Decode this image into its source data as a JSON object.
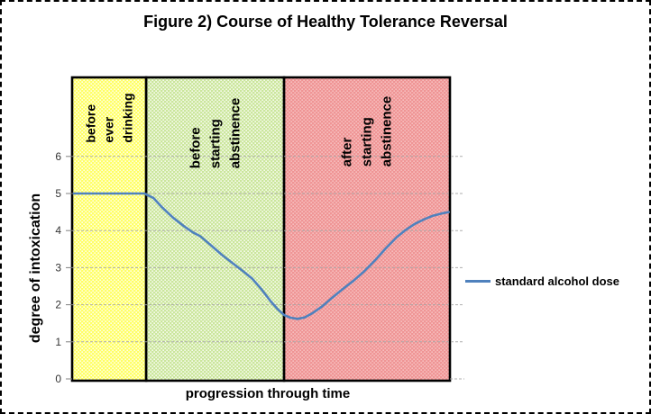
{
  "chart_data": {
    "type": "line",
    "title": "Figure 2) Course of Healthy Tolerance Reversal",
    "xlabel": "progression through time",
    "ylabel": "degree of intoxication",
    "ylim": [
      0,
      6
    ],
    "yticks": [
      0,
      1,
      2,
      3,
      4,
      5,
      6
    ],
    "x_axis": "unitless time (no numeric ticks), divided into three labeled phases",
    "grid": "horizontal dashed gridlines at each y tick",
    "grid_color": "#a6a6a6",
    "legend_position": "right",
    "regions": [
      {
        "label": "before\never\ndrinking",
        "t0": 0.0,
        "t1": 0.196,
        "fill": "#ffff66",
        "dot": "#ffffff"
      },
      {
        "label": "before\nstarting\nabstinence",
        "t0": 0.196,
        "t1": 0.561,
        "fill": "#cbe69c",
        "dot": "#ffffff"
      },
      {
        "label": "after\nstarting\nabstinence",
        "t0": 0.561,
        "t1": 1.0,
        "fill": "#ef9595",
        "dot": "#f9c6c6"
      }
    ],
    "series": [
      {
        "name": "standard alcohol dose",
        "color": "#4f81bd",
        "points_format": "[fraction of time axis 0-1, degree of intoxication]",
        "points": [
          [
            0.005,
            5
          ],
          [
            0.05,
            5
          ],
          [
            0.1,
            5
          ],
          [
            0.15,
            5
          ],
          [
            0.191,
            5
          ],
          [
            0.215,
            4.88
          ],
          [
            0.239,
            4.62
          ],
          [
            0.267,
            4.35
          ],
          [
            0.296,
            4.12
          ],
          [
            0.32,
            3.95
          ],
          [
            0.339,
            3.85
          ],
          [
            0.368,
            3.6
          ],
          [
            0.396,
            3.35
          ],
          [
            0.425,
            3.12
          ],
          [
            0.453,
            2.9
          ],
          [
            0.477,
            2.7
          ],
          [
            0.501,
            2.42
          ],
          [
            0.525,
            2.1
          ],
          [
            0.544,
            1.88
          ],
          [
            0.561,
            1.72
          ],
          [
            0.578,
            1.65
          ],
          [
            0.597,
            1.62
          ],
          [
            0.616,
            1.66
          ],
          [
            0.637,
            1.78
          ],
          [
            0.661,
            1.95
          ],
          [
            0.687,
            2.18
          ],
          [
            0.716,
            2.42
          ],
          [
            0.745,
            2.65
          ],
          [
            0.773,
            2.9
          ],
          [
            0.802,
            3.2
          ],
          [
            0.83,
            3.52
          ],
          [
            0.859,
            3.82
          ],
          [
            0.883,
            4.02
          ],
          [
            0.907,
            4.18
          ],
          [
            0.931,
            4.3
          ],
          [
            0.955,
            4.4
          ],
          [
            0.978,
            4.46
          ],
          [
            0.997,
            4.5
          ]
        ]
      }
    ]
  }
}
